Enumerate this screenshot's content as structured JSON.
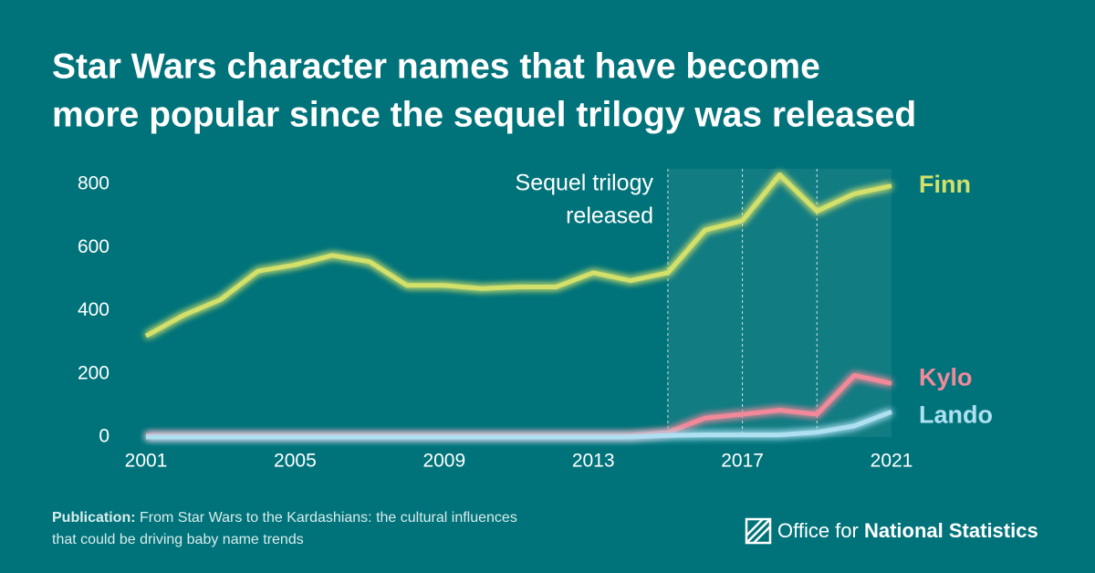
{
  "chart_data": {
    "type": "line",
    "title": [
      "Star Wars character names that have become",
      "more popular since the sequel trilogy was released"
    ],
    "annotation": [
      "Sequel trilogy",
      "released"
    ],
    "x": [
      2001,
      2002,
      2003,
      2004,
      2005,
      2006,
      2007,
      2008,
      2009,
      2010,
      2011,
      2012,
      2013,
      2014,
      2015,
      2016,
      2017,
      2018,
      2019,
      2020,
      2021
    ],
    "series": [
      {
        "name": "Finn",
        "color": "#d3e06a",
        "values": [
          320,
          385,
          435,
          525,
          545,
          575,
          555,
          480,
          480,
          470,
          475,
          475,
          520,
          495,
          520,
          655,
          685,
          830,
          715,
          770,
          795
        ]
      },
      {
        "name": "Kylo",
        "color": "#f2899a",
        "values": [
          5,
          5,
          5,
          5,
          5,
          5,
          5,
          5,
          5,
          5,
          5,
          5,
          5,
          5,
          15,
          60,
          72,
          85,
          72,
          195,
          170
        ]
      },
      {
        "name": "Lando",
        "color": "#aee0f2",
        "values": [
          0,
          0,
          0,
          0,
          0,
          0,
          0,
          0,
          0,
          0,
          0,
          0,
          0,
          0,
          5,
          7,
          7,
          7,
          15,
          35,
          80
        ]
      }
    ],
    "xlim": [
      2001,
      2021
    ],
    "xticks": [
      2001,
      2005,
      2009,
      2013,
      2017,
      2021
    ],
    "ylim": [
      0,
      800
    ],
    "yticks": [
      0,
      200,
      400,
      600,
      800
    ],
    "vlines": [
      2015,
      2017,
      2019
    ],
    "source": {
      "label": "Publication:",
      "text": [
        "From Star Wars to the Kardashians: the cultural influences",
        "that could be driving baby name trends"
      ]
    },
    "logo": [
      "Office for",
      "National Statistics"
    ]
  }
}
